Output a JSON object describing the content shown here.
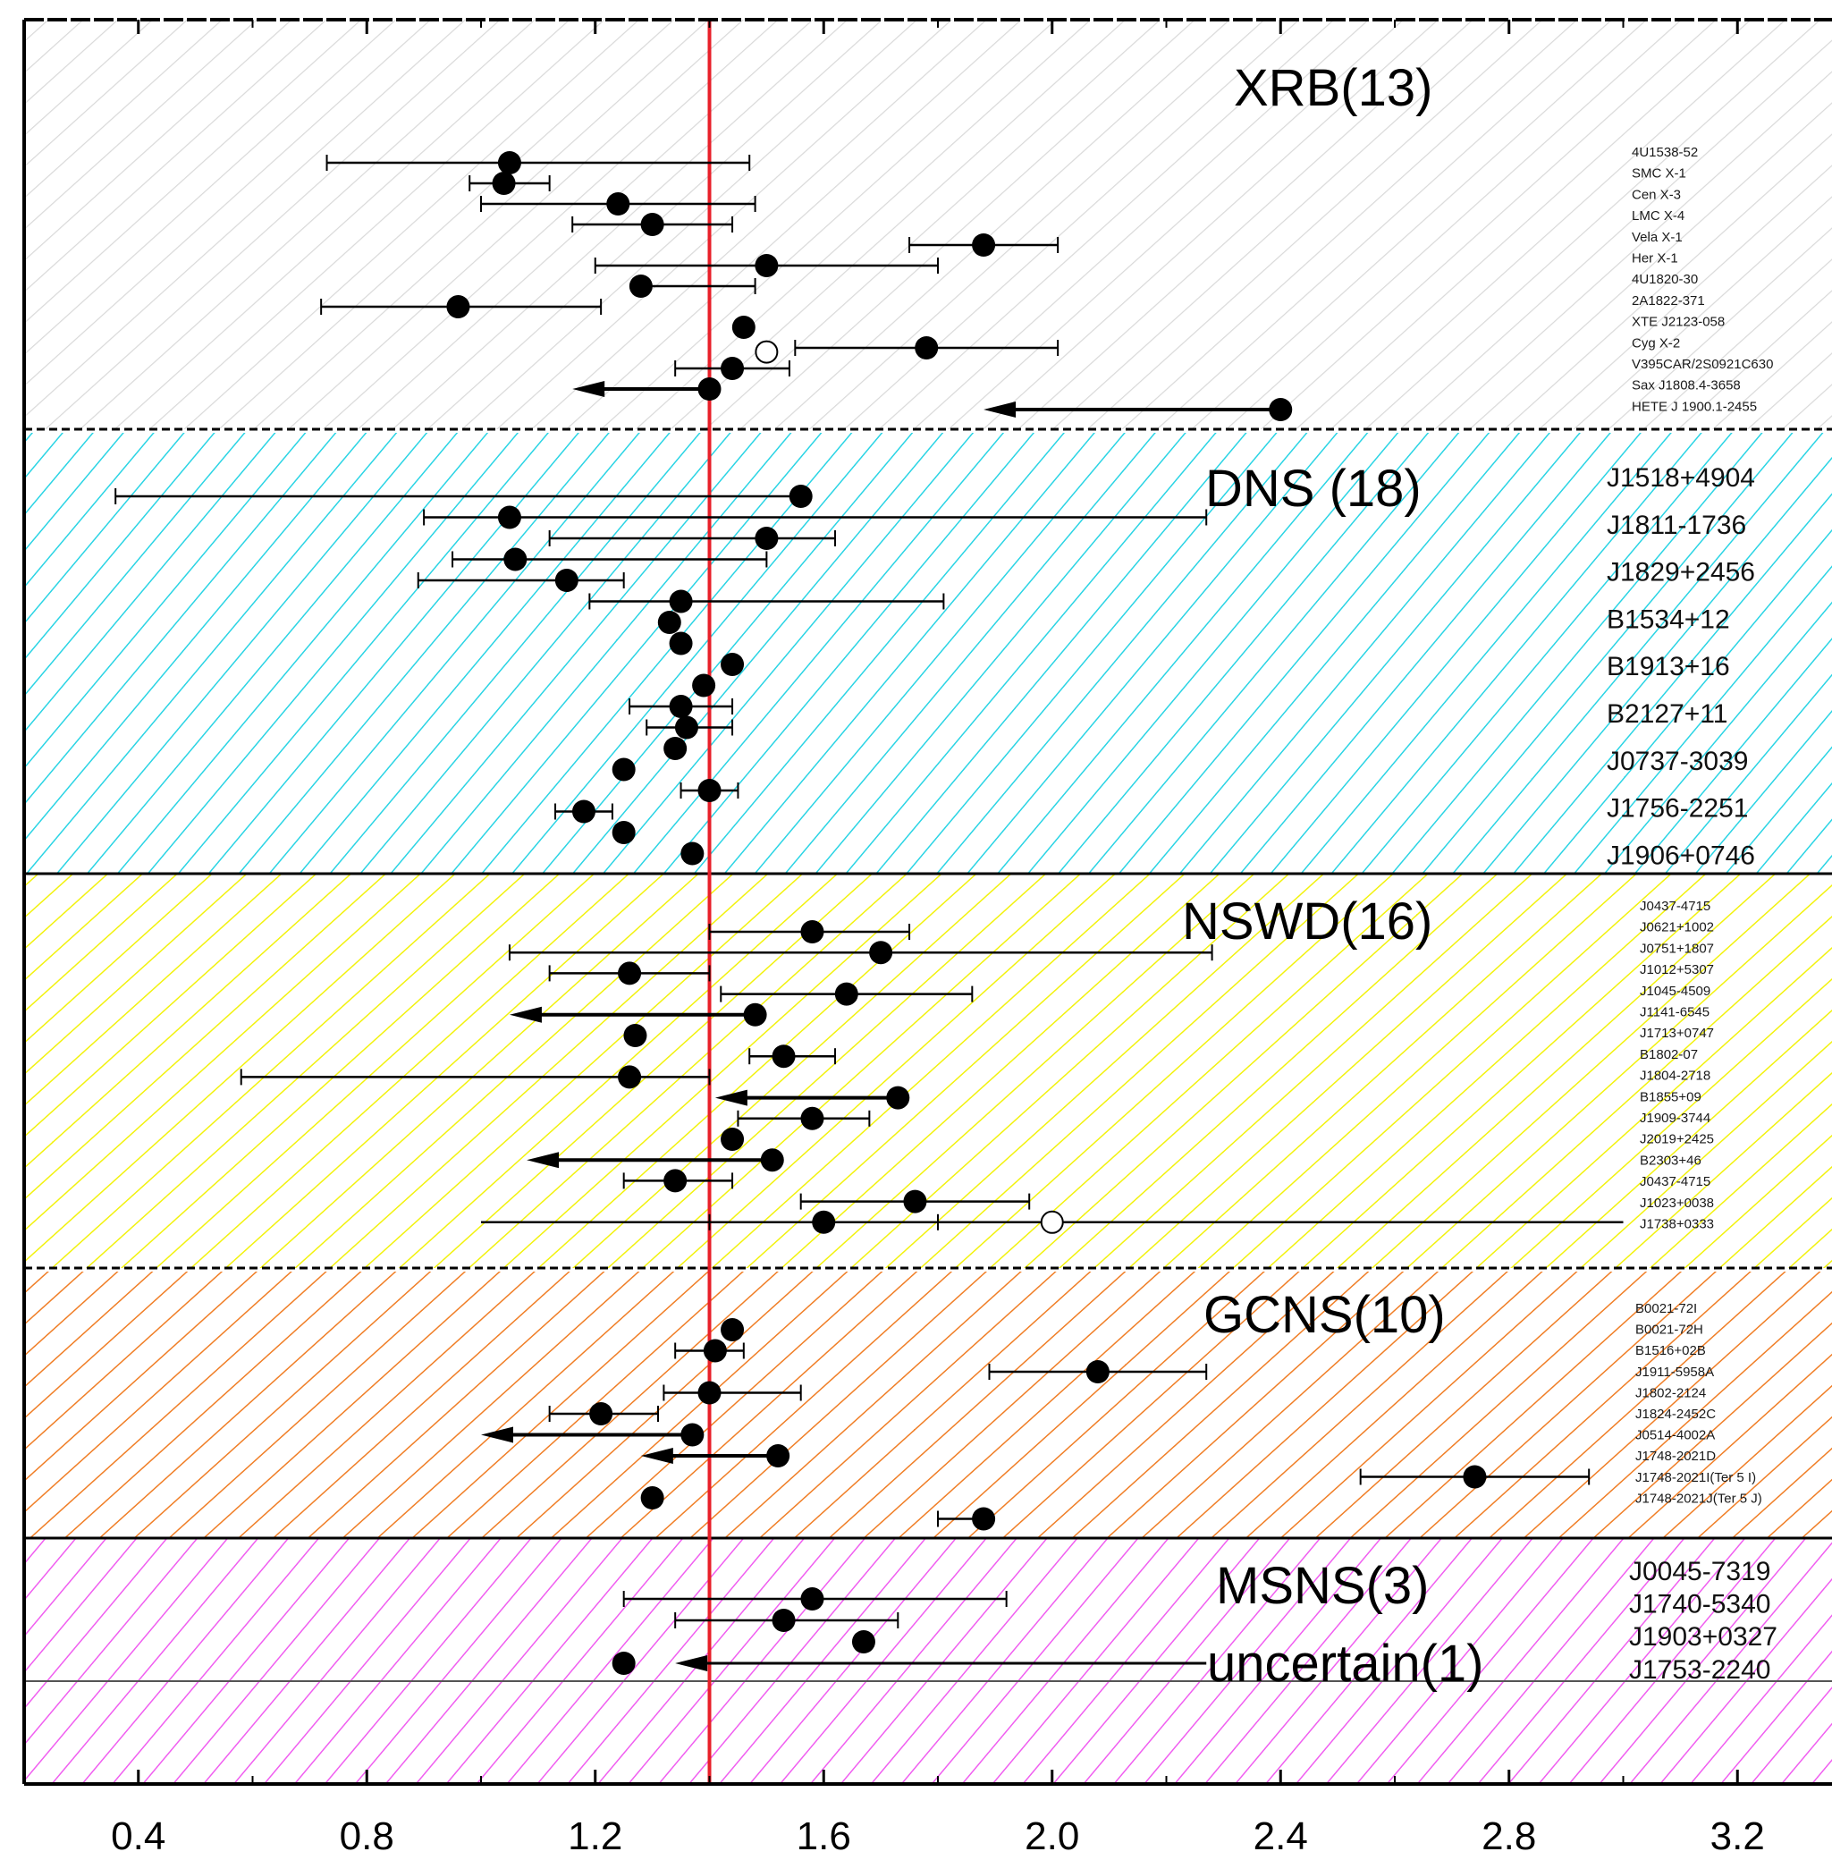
{
  "chart_data": {
    "type": "scatter",
    "xlim": [
      0.2,
      3.4
    ],
    "xticks": [
      "0.4",
      "0.8",
      "1.2",
      "1.6",
      "2.0",
      "2.4",
      "2.8",
      "3.2"
    ],
    "xtick_values": [
      0.4,
      0.8,
      1.2,
      1.6,
      2.0,
      2.4,
      2.8,
      3.2
    ],
    "reference_line": {
      "x": 1.4,
      "color": "#e8202a"
    },
    "groups": [
      {
        "key": "xrb",
        "title": "XRB(13)",
        "color": "#d9d9d9",
        "label_style": "small",
        "sources": [
          "4U1538-52",
          "SMC X-1",
          "Cen X-3",
          "LMC X-4",
          "Vela X-1",
          "Her X-1",
          "4U1820-30",
          "2A1822-371",
          "XTE J2123-058",
          "Cyg X-2",
          "V395CAR/2S0921C630",
          "Sax J1808.4-3658",
          "HETE J 1900.1-2455"
        ],
        "points": [
          {
            "x": 1.05,
            "lo": 0.73,
            "hi": 1.47
          },
          {
            "x": 1.04,
            "lo": 0.98,
            "hi": 1.12
          },
          {
            "x": 1.24,
            "lo": 1.0,
            "hi": 1.48
          },
          {
            "x": 1.3,
            "lo": 1.16,
            "hi": 1.44
          },
          {
            "x": 1.88,
            "lo": 1.75,
            "hi": 2.01
          },
          {
            "x": 1.5,
            "lo": 1.2,
            "hi": 1.8
          },
          {
            "x": 1.28,
            "lo": 1.28,
            "hi": 1.48
          },
          {
            "x": 0.96,
            "lo": 0.72,
            "hi": 1.21
          },
          {
            "x": 1.46
          },
          {
            "x": 1.78,
            "lo": 1.55,
            "hi": 2.01
          },
          {
            "x": 1.44,
            "lo": 1.34,
            "hi": 1.54
          },
          {
            "x": 1.4,
            "upper": true,
            "lo": 1.16
          },
          {
            "x": 2.4,
            "upper": true,
            "lo": 1.88
          }
        ],
        "open_points": [
          {
            "x": 1.5,
            "pos": 9.2
          }
        ]
      },
      {
        "key": "dns",
        "title": "DNS (18)",
        "color": "#2ad4e4",
        "label_style": "big",
        "sources": [
          "J1518+4904",
          "J1811-1736",
          "J1829+2456",
          "B1534+12",
          "B1913+16",
          "B2127+11",
          "J0737-3039",
          "J1756-2251",
          "J1906+0746"
        ],
        "points": [
          {
            "x": 1.56,
            "lo": 0.36,
            "hi": 1.56
          },
          {
            "x": 1.05,
            "lo": 0.9,
            "hi": 2.27
          },
          {
            "x": 1.5,
            "lo": 1.12,
            "hi": 1.62
          },
          {
            "x": 1.06,
            "lo": 0.95,
            "hi": 1.5
          },
          {
            "x": 1.15,
            "lo": 0.89,
            "hi": 1.25
          },
          {
            "x": 1.35,
            "lo": 1.19,
            "hi": 1.81
          },
          {
            "x": 1.33
          },
          {
            "x": 1.35
          },
          {
            "x": 1.44
          },
          {
            "x": 1.39
          },
          {
            "x": 1.35,
            "lo": 1.26,
            "hi": 1.44
          },
          {
            "x": 1.36,
            "lo": 1.29,
            "hi": 1.44
          },
          {
            "x": 1.34
          },
          {
            "x": 1.25
          },
          {
            "x": 1.4,
            "lo": 1.35,
            "hi": 1.45
          },
          {
            "x": 1.18,
            "lo": 1.13,
            "hi": 1.23
          },
          {
            "x": 1.25
          },
          {
            "x": 1.37
          }
        ]
      },
      {
        "key": "nswd",
        "title": "NSWD(16)",
        "color": "#f2f20e",
        "label_style": "small",
        "sources": [
          "J0437-4715",
          "J0621+1002",
          "J0751+1807",
          "J1012+5307",
          "J1045-4509",
          "J1141-6545",
          "J1713+0747",
          "B1802-07",
          "J1804-2718",
          "B1855+09",
          "J1909-3744",
          "J2019+2425",
          "B2303+46",
          "J0437-4715",
          "J1023+0038",
          "J1738+0333"
        ],
        "points": [
          {
            "x": 1.58,
            "lo": 1.4,
            "hi": 1.75
          },
          {
            "x": 1.7,
            "lo": 1.05,
            "hi": 2.28
          },
          {
            "x": 1.26,
            "lo": 1.12,
            "hi": 1.4
          },
          {
            "x": 1.64,
            "lo": 1.42,
            "hi": 1.86
          },
          {
            "x": 1.48,
            "upper": true,
            "lo": 1.05
          },
          {
            "x": 1.27
          },
          {
            "x": 1.53,
            "lo": 1.47,
            "hi": 1.62
          },
          {
            "x": 1.26,
            "lo": 0.58,
            "hi": 1.4
          },
          {
            "x": 1.73,
            "upper": true,
            "lo": 1.41
          },
          {
            "x": 1.58,
            "lo": 1.45,
            "hi": 1.68
          },
          {
            "x": 1.44
          },
          {
            "x": 1.51,
            "upper": true,
            "lo": 1.08
          },
          {
            "x": 1.34,
            "lo": 1.25,
            "hi": 1.44
          },
          {
            "x": 1.76,
            "lo": 1.56,
            "hi": 1.96
          },
          {
            "x": 1.6,
            "lo": 1.4,
            "hi": 1.8
          }
        ],
        "open_points": [
          {
            "x": 2.0,
            "pos": 14,
            "lo": 1.0,
            "hi": 3.0
          }
        ]
      },
      {
        "key": "gcns",
        "title": "GCNS(10)",
        "color": "#f07e26",
        "label_style": "small",
        "sources": [
          "B0021-72I",
          "B0021-72H",
          "B1516+02B",
          "J1911-5958A",
          "J1802-2124",
          "J1824-2452C",
          "J0514-4002A",
          "J1748-2021D",
          "J1748-2021I(Ter 5 I)",
          "J1748-2021J(Ter 5 J)"
        ],
        "points": [
          {
            "x": 1.44
          },
          {
            "x": 1.41,
            "lo": 1.34,
            "hi": 1.46
          },
          {
            "x": 2.08,
            "lo": 1.89,
            "hi": 2.27
          },
          {
            "x": 1.4,
            "lo": 1.32,
            "hi": 1.56
          },
          {
            "x": 1.21,
            "lo": 1.12,
            "hi": 1.31
          },
          {
            "x": 1.37,
            "upper": true,
            "lo": 1.0
          },
          {
            "x": 1.52,
            "upper": true,
            "lo": 1.28
          },
          {
            "x": 2.74,
            "lo": 2.54,
            "hi": 2.94
          },
          {
            "x": 1.3
          },
          {
            "x": 1.88,
            "lo": 1.8,
            "hi": 1.88
          }
        ]
      },
      {
        "key": "msns",
        "title": "MSNS(3)",
        "subtitle": "uncertain(1)",
        "color": "#f05ef0",
        "label_style": "big",
        "sources": [
          "J0045-7319",
          "J1740-5340",
          "J1903+0327",
          "J1753-2240"
        ],
        "points": [
          {
            "x": 1.58,
            "lo": 1.25,
            "hi": 1.92
          },
          {
            "x": 1.53,
            "lo": 1.34,
            "hi": 1.73
          },
          {
            "x": 1.67
          },
          {
            "x": 1.25
          }
        ],
        "uncertain_limit": {
          "x": 2.27,
          "upper": true,
          "lo": 1.34
        }
      }
    ]
  }
}
